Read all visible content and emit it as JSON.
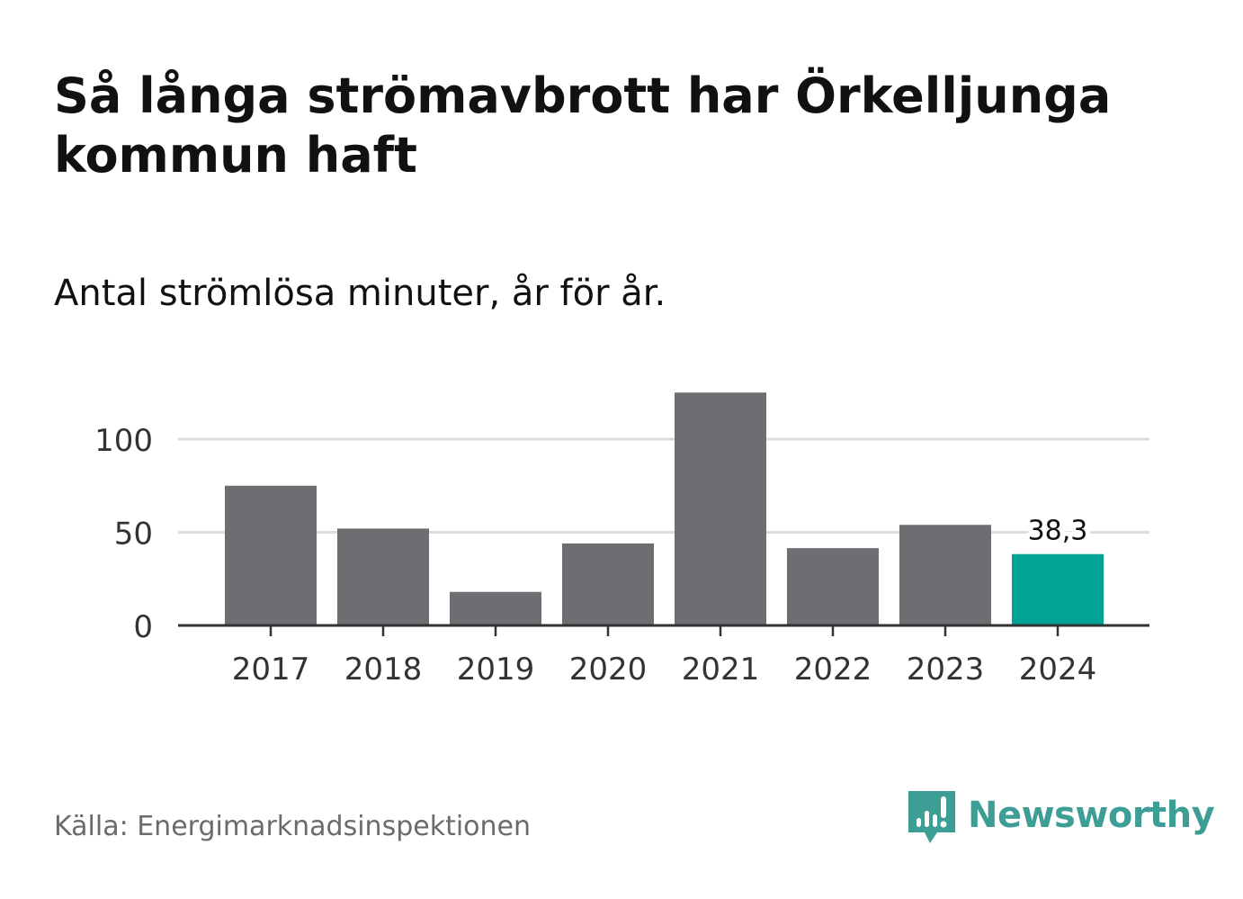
{
  "title": "Så långa strömavbrott har Örkelljunga kommun haft",
  "subtitle": "Antal strömlösa minuter, år för år.",
  "source": "Källa: Energimarknadsinspektionen",
  "brand": {
    "name": "Newsworthy",
    "icon": "newsworthy-logo-icon",
    "color": "#3d9e95"
  },
  "colors": {
    "bar": "#6e6d72",
    "highlight": "#00a396",
    "grid": "#dddddd",
    "axis": "#333333"
  },
  "chart_data": {
    "type": "bar",
    "title": "Så långa strömavbrott har Örkelljunga kommun haft",
    "subtitle": "Antal strömlösa minuter, år för år.",
    "xlabel": "",
    "ylabel": "",
    "categories": [
      "2017",
      "2018",
      "2019",
      "2020",
      "2021",
      "2022",
      "2023",
      "2024"
    ],
    "values": [
      75,
      52,
      18,
      44,
      125,
      41.5,
      54,
      38.3
    ],
    "ylim": [
      0,
      130
    ],
    "yticks": [
      0,
      50,
      100
    ],
    "ytick_labels": [
      "0",
      "50",
      "100"
    ],
    "grid": true,
    "highlight_index": 7,
    "data_labels": [
      {
        "index": 7,
        "text": "38,3"
      }
    ]
  }
}
